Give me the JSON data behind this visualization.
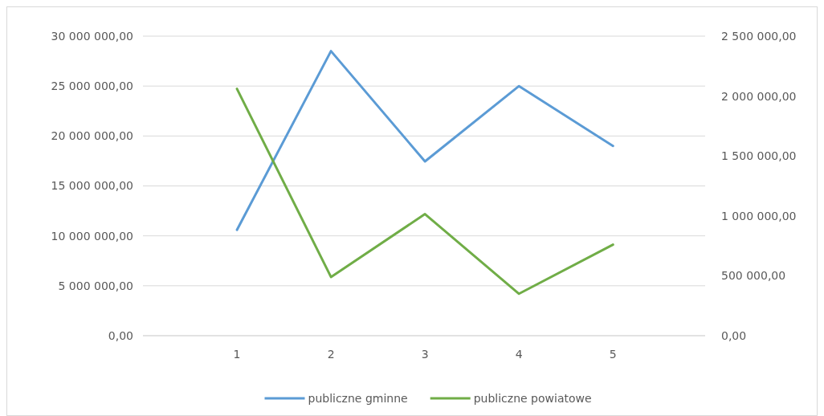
{
  "chart_data": {
    "type": "line",
    "x": [
      1,
      2,
      3,
      4,
      5
    ],
    "xlim": [
      0.0,
      5.98
    ],
    "xticks": [
      1,
      2,
      3,
      4,
      5
    ],
    "series": [
      {
        "name": "publiczne gminne",
        "color": "#5b9bd5",
        "values": [
          10600000,
          28500000,
          17450000,
          25000000,
          19000000
        ]
      },
      {
        "name": "publiczne powiatowe",
        "color": "#70ad47",
        "axis": "y2",
        "values": [
          2060000,
          490000,
          1015000,
          350000,
          760000
        ]
      }
    ],
    "ylim": [
      0,
      30000000
    ],
    "yticks": [
      {
        "value": 0,
        "label": "0,00"
      },
      {
        "value": 5000000,
        "label": "5 000 000,00"
      },
      {
        "value": 10000000,
        "label": "10 000 000,00"
      },
      {
        "value": 15000000,
        "label": "15 000 000,00"
      },
      {
        "value": 20000000,
        "label": "20 000 000,00"
      },
      {
        "value": 25000000,
        "label": "25 000 000,00"
      },
      {
        "value": 30000000,
        "label": "30 000 000,00"
      }
    ],
    "y2lim": [
      0,
      2500000
    ],
    "y2ticks": [
      {
        "value": 0,
        "label": "0,00"
      },
      {
        "value": 500000,
        "label": "500 000,00"
      },
      {
        "value": 1000000,
        "label": "1 000 000,00"
      },
      {
        "value": 1500000,
        "label": "1 500 000,00"
      },
      {
        "value": 2000000,
        "label": "2 000 000,00"
      },
      {
        "value": 2500000,
        "label": "2 500 000,00"
      }
    ],
    "grid": "y",
    "legend": "bottom",
    "marker": "none",
    "line_style": "solid"
  }
}
